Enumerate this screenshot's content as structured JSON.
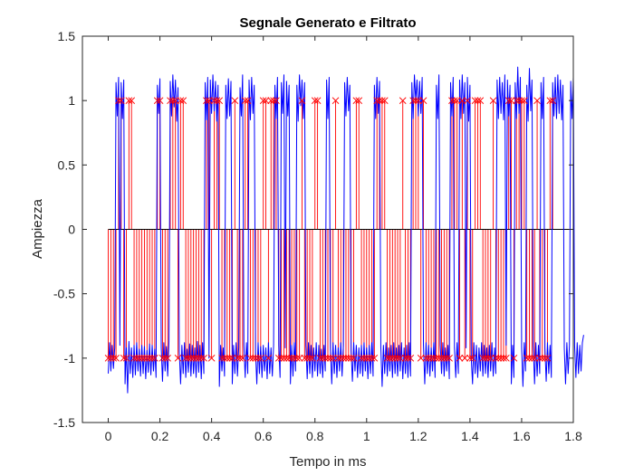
{
  "chart_data": {
    "type": "line",
    "title": "Segnale Generato e Filtrato",
    "xlabel": "Tempo in ms",
    "ylabel": "Ampiezza",
    "xlim": [
      -0.1,
      1.8
    ],
    "ylim": [
      -1.5,
      1.5
    ],
    "xticks": [
      0,
      0.2,
      0.4,
      0.6,
      0.8,
      1,
      1.2,
      1.4,
      1.6,
      1.8
    ],
    "xtick_labels": [
      "0",
      "0.2",
      "0.4",
      "0.6",
      "0.8",
      "1",
      "1.2",
      "1.4",
      "1.6",
      "1.8"
    ],
    "yticks": [
      -1.5,
      -1,
      -0.5,
      0,
      0.5,
      1,
      1.5
    ],
    "ytick_labels": [
      "-1.5",
      "-1",
      "-0.5",
      "0",
      "0.5",
      "1",
      "1.5"
    ],
    "grid": false,
    "baseline": 0,
    "colors": {
      "stem": "#ff0000",
      "filtered": "#0000ff",
      "baseline": "#000000",
      "axes": "#262626"
    },
    "series": [
      {
        "kind": "stem",
        "marker": "x",
        "t_start": 0,
        "t_step": 0.01,
        "values": [
          -1,
          -1,
          -1,
          -1,
          1,
          1,
          -1,
          -1,
          1,
          1,
          -1,
          -1,
          -1,
          -1,
          -1,
          -1,
          -1,
          -1,
          -1,
          1,
          1,
          -1,
          -1,
          -1,
          1,
          1,
          1,
          -1,
          1,
          1,
          -1,
          -1,
          -1,
          -1,
          -1,
          -1,
          -1,
          -1,
          1,
          1,
          -1,
          1,
          1,
          1,
          -1,
          -1,
          -1,
          -1,
          -1,
          1,
          -1,
          -1,
          -1,
          1,
          1,
          -1,
          -1,
          -1,
          -1,
          -1,
          1,
          1,
          -1,
          1,
          1,
          1,
          -1,
          -1,
          -1,
          -1,
          -1,
          -1,
          -1,
          -1,
          -1,
          1,
          -1,
          -1,
          -1,
          -1,
          1,
          1,
          -1,
          -1,
          -1,
          -1,
          -1,
          -1,
          1,
          -1,
          -1,
          -1,
          -1,
          -1,
          -1,
          -1,
          1,
          1,
          -1,
          -1,
          -1,
          -1,
          -1,
          -1,
          1,
          1,
          1,
          1,
          -1,
          -1,
          -1,
          -1,
          -1,
          -1,
          1,
          -1,
          -1,
          -1,
          1,
          1,
          1,
          -1,
          1,
          -1,
          -1,
          -1,
          -1,
          -1,
          -1,
          -1,
          -1,
          -1,
          -1,
          1,
          1,
          1,
          -1,
          1,
          -1,
          1,
          -1,
          -1,
          1,
          1,
          1,
          -1,
          -1,
          -1,
          -1,
          1,
          -1,
          -1,
          -1,
          -1,
          -1,
          1,
          1,
          -1,
          1,
          1,
          1,
          1,
          -1,
          -1,
          -1,
          -1,
          1,
          -1,
          -1,
          -1,
          -1,
          1,
          1
        ]
      },
      {
        "kind": "filtered",
        "t_start": 0,
        "t_step": 0.005,
        "values": [
          -1.12,
          -0.88,
          -1.1,
          -0.9,
          -1.08,
          -0.92,
          1.14,
          0.88,
          1.18,
          -0.9,
          1.14,
          0.86,
          1.16,
          -1.2,
          -0.92,
          -1.27,
          -0.87,
          -1.12,
          -0.92,
          -1.15,
          -0.9,
          -1.13,
          -0.88,
          -1.1,
          -0.93,
          -1.14,
          -0.9,
          -1.12,
          -0.91,
          -1.16,
          -0.94,
          -1.11,
          -0.89,
          -1.13,
          -0.9,
          -1.1,
          -0.93,
          -1.15,
          1.12,
          0.9,
          1.17,
          -0.92,
          -1.18,
          -0.88,
          -1.1,
          -0.91,
          -1.14,
          -0.87,
          1.15,
          0.88,
          1.2,
          0.95,
          1.16,
          0.84,
          1.1,
          -0.95,
          -1.2,
          -0.9,
          -1.12,
          -0.88,
          -1.15,
          -0.93,
          -1.11,
          -0.89,
          -1.14,
          -0.9,
          -1.12,
          -0.92,
          -1.15,
          -0.87,
          -1.11,
          -0.9,
          -1.16,
          -0.88,
          -1.12,
          1.14,
          0.85,
          1.18,
          -1.0,
          1.16,
          0.9,
          1.2,
          0.92,
          1.15,
          0.84,
          1.12,
          -1.22,
          -0.9,
          -1.1,
          -0.92,
          -1.14,
          1.12,
          0.86,
          1.17,
          0.88,
          1.15,
          -1.2,
          -0.9,
          -1.12,
          -0.88,
          -1.14,
          -0.92,
          1.1,
          0.88,
          1.2,
          -0.9,
          -1.15,
          -0.88,
          -1.12,
          1.16,
          0.85,
          1.18,
          0.9,
          1.12,
          -0.95,
          -1.2,
          -0.88,
          -1.12,
          -0.91,
          -1.15,
          -0.9,
          -1.1,
          -0.92,
          -1.16,
          -0.88,
          -1.12,
          -0.92,
          -1.14,
          -0.9,
          1.12,
          0.86,
          1.18,
          -0.9,
          -1.15,
          1.14,
          0.9,
          1.2,
          -0.92,
          1.15,
          0.88,
          1.12,
          -1.2,
          -0.9,
          -1.14,
          -0.88,
          -1.1,
          1.12,
          0.84,
          1.2,
          0.96,
          1.16,
          0.86,
          1.14,
          -0.9,
          -1.16,
          -0.88,
          -1.12,
          -0.9,
          -1.15,
          -0.92,
          -1.1,
          -0.88,
          -1.14,
          -0.9,
          -1.12,
          -0.93,
          -1.15,
          -0.9,
          -1.1,
          1.16,
          0.86,
          1.18,
          -0.92,
          -1.2,
          -0.88,
          -1.12,
          -0.9,
          -1.15,
          -0.92,
          -1.1,
          -0.88,
          -1.14,
          -0.9,
          1.14,
          0.88,
          1.18,
          0.92,
          1.12,
          -0.94,
          -1.18,
          -0.88,
          -1.1,
          -0.9,
          -1.15,
          -0.92,
          -1.12,
          -0.9,
          -1.14,
          -0.88,
          -1.1,
          -0.92,
          -1.16,
          -0.9,
          -1.12,
          -0.88,
          -1.14,
          1.12,
          0.86,
          1.18,
          0.9,
          1.15,
          -0.92,
          -1.22,
          -0.9,
          -1.12,
          -0.88,
          -1.14,
          -0.92,
          -1.1,
          -0.9,
          -1.15,
          -0.88,
          -1.12,
          -0.92,
          -1.14,
          -0.9,
          -1.1,
          -0.88,
          -1.16,
          -0.92,
          -1.12,
          -0.9,
          -1.15,
          -0.88,
          -1.14,
          1.14,
          0.86,
          1.2,
          1.0,
          1.16,
          0.88,
          1.15,
          0.9,
          1.18,
          -0.9,
          -1.2,
          -0.88,
          -1.12,
          -0.9,
          -1.14,
          -0.92,
          -1.1,
          -0.88,
          -1.15,
          1.12,
          0.86,
          1.2,
          -0.9,
          -1.12,
          -0.88,
          -1.14,
          -0.92,
          -1.1,
          -0.9,
          -1.16,
          1.14,
          0.88,
          1.18,
          -0.92,
          -1.15,
          -0.88,
          -1.12,
          1.16,
          0.86,
          1.2,
          0.9,
          1.14,
          -0.92,
          1.18,
          0.84,
          1.12,
          -1.0,
          -1.2,
          -0.88,
          -1.12,
          -0.9,
          -1.15,
          -0.92,
          -1.1,
          -0.88,
          -1.14,
          -0.9,
          -1.12,
          -0.92,
          -1.15,
          -0.9,
          -1.1,
          -0.88,
          -1.14,
          -0.92,
          -1.12,
          1.16,
          0.86,
          1.18,
          0.9,
          1.14,
          0.85,
          1.2,
          -0.9,
          1.16,
          0.88,
          1.12,
          -1.2,
          -0.9,
          -1.15,
          1.14,
          0.86,
          1.26,
          0.9,
          1.18,
          -0.92,
          -1.22,
          -0.88,
          -1.1,
          1.12,
          0.84,
          1.25,
          0.92,
          1.16,
          -0.9,
          -1.2,
          -0.88,
          -1.14,
          -0.9,
          -1.12,
          1.14,
          0.86,
          1.18,
          -0.92,
          -1.18,
          -0.88,
          -1.12,
          -0.9,
          -1.15,
          1.14,
          0.88,
          1.18,
          0.86,
          1.2,
          0.9,
          1.16,
          0.85,
          1.12,
          -0.92,
          -1.2,
          -0.88,
          -1.12,
          -0.9,
          1.15,
          0.86,
          1.18,
          -0.9,
          -1.15,
          -0.88,
          -1.12,
          -0.9,
          -1.1,
          -0.88,
          -0.82
        ]
      }
    ]
  }
}
